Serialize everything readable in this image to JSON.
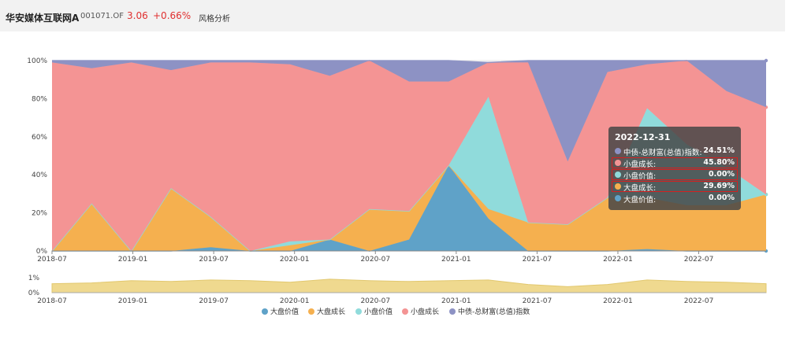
{
  "header": {
    "fund_name": "华安媒体互联网A",
    "fund_code": "001071.OF",
    "price": "3.06",
    "change": "+0.66%",
    "tab_label": "风格分析"
  },
  "colors": {
    "大盘价值": "#5fa2c8",
    "大盘成长": "#f5b04f",
    "小盘价值": "#90dbdb",
    "小盘成长": "#f49494",
    "中债-总财富(总值)指数": "#8d92c4",
    "nav_area": "#efd98f"
  },
  "chart_data": [
    {
      "type": "area",
      "stacked": true,
      "x": [
        "2018-07",
        "2018-10",
        "2019-01",
        "2019-04",
        "2019-07",
        "2019-10",
        "2020-01",
        "2020-04",
        "2020-07",
        "2020-10",
        "2021-01",
        "2021-04",
        "2021-07",
        "2021-10",
        "2022-01",
        "2022-04",
        "2022-07",
        "2022-10",
        "2022-12-31"
      ],
      "series": [
        {
          "name": "大盘价值",
          "values": [
            0,
            0,
            0,
            0,
            2,
            0,
            0,
            6,
            0,
            6,
            45,
            17,
            0,
            0,
            0,
            1,
            0,
            0,
            0
          ]
        },
        {
          "name": "大盘成长",
          "values": [
            0,
            25,
            0,
            33,
            16,
            0,
            3,
            0,
            22,
            15,
            0,
            5,
            15,
            14,
            28,
            27,
            24,
            24,
            29.69
          ]
        },
        {
          "name": "小盘价值",
          "values": [
            0,
            0,
            0,
            0,
            0,
            0,
            2,
            0,
            0,
            0,
            0,
            59,
            0,
            0,
            0,
            47,
            32,
            20,
            0
          ]
        },
        {
          "name": "小盘成长",
          "values": [
            99,
            71,
            99,
            62,
            81,
            99,
            93,
            86,
            78,
            68,
            44,
            18,
            84,
            33,
            66,
            23,
            44,
            40,
            45.8
          ]
        },
        {
          "name": "中债-总财富(总值)指数",
          "values": [
            1,
            4,
            1,
            5,
            1,
            1,
            2,
            8,
            0,
            11,
            11,
            0,
            1,
            53,
            6,
            2,
            0,
            16,
            24.51
          ]
        }
      ],
      "ylim": [
        0,
        100
      ],
      "y_ticks": [
        "0%",
        "20%",
        "40%",
        "60%",
        "80%",
        "100%"
      ],
      "x_ticks": [
        "2018-07",
        "2019-01",
        "2019-07",
        "2020-01",
        "2020-07",
        "2021-01",
        "2021-07",
        "2022-01",
        "2022-07"
      ],
      "legend": [
        "大盘价值",
        "大盘成长",
        "小盘价值",
        "小盘成长",
        "中债-总财富(总值)指数"
      ],
      "legend_position": "bottom",
      "tooltip": {
        "date": "2022-12-31",
        "rows": [
          {
            "name": "中债-总财富(总值)指数",
            "value": "24.51%",
            "highlight": false
          },
          {
            "name": "小盘成长",
            "value": "45.80%",
            "highlight": true
          },
          {
            "name": "小盘价值",
            "value": "0.00%",
            "highlight": true
          },
          {
            "name": "大盘成长",
            "value": "29.69%",
            "highlight": true
          },
          {
            "name": "大盘价值",
            "value": "0.00%",
            "highlight": false
          }
        ]
      }
    },
    {
      "type": "area",
      "role": "overview-navigator",
      "values": [
        0.6,
        0.65,
        0.8,
        0.75,
        0.85,
        0.8,
        0.7,
        0.9,
        0.8,
        0.75,
        0.8,
        0.85,
        0.55,
        0.4,
        0.55,
        0.85,
        0.75,
        0.7,
        0.6
      ],
      "ylim": [
        0,
        1
      ],
      "y_ticks": [
        "0%",
        "1%"
      ],
      "x_ticks": [
        "2018-07",
        "2019-01",
        "2019-07",
        "2020-01",
        "2020-07",
        "2021-01",
        "2021-07",
        "2022-01",
        "2022-07"
      ]
    }
  ]
}
